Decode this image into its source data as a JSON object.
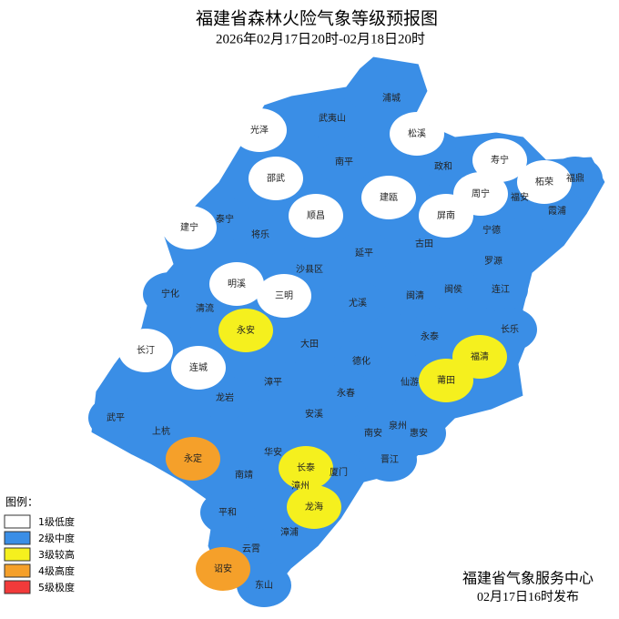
{
  "title": "福建省森林火险气象等级预报图",
  "subtitle": "2026年02月17日20时-02月18日20时",
  "legend": {
    "title": "图例：",
    "items": [
      {
        "label": "1级低度",
        "color": "#ffffff"
      },
      {
        "label": "2级中度",
        "color": "#3a8ee6"
      },
      {
        "label": "3级较高",
        "color": "#f5f01e"
      },
      {
        "label": "4级高度",
        "color": "#f5a02a"
      },
      {
        "label": "5级极度",
        "color": "#f23a3a"
      }
    ]
  },
  "counties": [
    {
      "name": "浦城",
      "color": "#3a8ee6"
    },
    {
      "name": "武夷山",
      "color": "#3a8ee6"
    },
    {
      "name": "光泽",
      "color": "#ffffff"
    },
    {
      "name": "松溪",
      "color": "#ffffff"
    },
    {
      "name": "政和",
      "color": "#3a8ee6"
    },
    {
      "name": "寿宁",
      "color": "#ffffff"
    },
    {
      "name": "柘荣",
      "color": "#ffffff"
    },
    {
      "name": "福鼎",
      "color": "#3a8ee6"
    },
    {
      "name": "南平",
      "color": "#3a8ee6"
    },
    {
      "name": "邵武",
      "color": "#ffffff"
    },
    {
      "name": "周宁",
      "color": "#ffffff"
    },
    {
      "name": "福安",
      "color": "#3a8ee6"
    },
    {
      "name": "霞浦",
      "color": "#3a8ee6"
    },
    {
      "name": "建瓯",
      "color": "#ffffff"
    },
    {
      "name": "顺昌",
      "color": "#ffffff"
    },
    {
      "name": "屏南",
      "color": "#ffffff"
    },
    {
      "name": "建宁",
      "color": "#ffffff"
    },
    {
      "name": "泰宁",
      "color": "#3a8ee6"
    },
    {
      "name": "将乐",
      "color": "#3a8ee6"
    },
    {
      "name": "宁德",
      "color": "#3a8ee6"
    },
    {
      "name": "古田",
      "color": "#3a8ee6"
    },
    {
      "name": "延平",
      "color": "#3a8ee6"
    },
    {
      "name": "罗源",
      "color": "#3a8ee6"
    },
    {
      "name": "沙县区",
      "color": "#3a8ee6"
    },
    {
      "name": "明溪",
      "color": "#ffffff"
    },
    {
      "name": "闽清",
      "color": "#3a8ee6"
    },
    {
      "name": "闽侯",
      "color": "#3a8ee6"
    },
    {
      "name": "连江",
      "color": "#3a8ee6"
    },
    {
      "name": "宁化",
      "color": "#3a8ee6"
    },
    {
      "name": "三明",
      "color": "#ffffff"
    },
    {
      "name": "尤溪",
      "color": "#3a8ee6"
    },
    {
      "name": "清流",
      "color": "#3a8ee6"
    },
    {
      "name": "永安",
      "color": "#f5f01e"
    },
    {
      "name": "大田",
      "color": "#3a8ee6"
    },
    {
      "name": "永泰",
      "color": "#3a8ee6"
    },
    {
      "name": "长乐",
      "color": "#3a8ee6"
    },
    {
      "name": "长汀",
      "color": "#ffffff"
    },
    {
      "name": "福清",
      "color": "#f5f01e"
    },
    {
      "name": "德化",
      "color": "#3a8ee6"
    },
    {
      "name": "连城",
      "color": "#ffffff"
    },
    {
      "name": "莆田",
      "color": "#f5f01e"
    },
    {
      "name": "仙游",
      "color": "#3a8ee6"
    },
    {
      "name": "漳平",
      "color": "#3a8ee6"
    },
    {
      "name": "永春",
      "color": "#3a8ee6"
    },
    {
      "name": "龙岩",
      "color": "#3a8ee6"
    },
    {
      "name": "安溪",
      "color": "#3a8ee6"
    },
    {
      "name": "武平",
      "color": "#3a8ee6"
    },
    {
      "name": "上杭",
      "color": "#3a8ee6"
    },
    {
      "name": "南安",
      "color": "#3a8ee6"
    },
    {
      "name": "泉州",
      "color": "#3a8ee6"
    },
    {
      "name": "惠安",
      "color": "#3a8ee6"
    },
    {
      "name": "晋江",
      "color": "#3a8ee6"
    },
    {
      "name": "永定",
      "color": "#f5a02a"
    },
    {
      "name": "华安",
      "color": "#3a8ee6"
    },
    {
      "name": "长泰",
      "color": "#f5f01e"
    },
    {
      "name": "厦门",
      "color": "#3a8ee6"
    },
    {
      "name": "南靖",
      "color": "#3a8ee6"
    },
    {
      "name": "漳州",
      "color": "#3a8ee6"
    },
    {
      "name": "龙海",
      "color": "#f5f01e"
    },
    {
      "name": "平和",
      "color": "#3a8ee6"
    },
    {
      "name": "漳浦",
      "color": "#3a8ee6"
    },
    {
      "name": "云霄",
      "color": "#3a8ee6"
    },
    {
      "name": "诏安",
      "color": "#f5a02a"
    },
    {
      "name": "东山",
      "color": "#3a8ee6"
    }
  ],
  "footer": {
    "agency": "福建省气象服务中心",
    "issued": "02月17日16时发布"
  }
}
